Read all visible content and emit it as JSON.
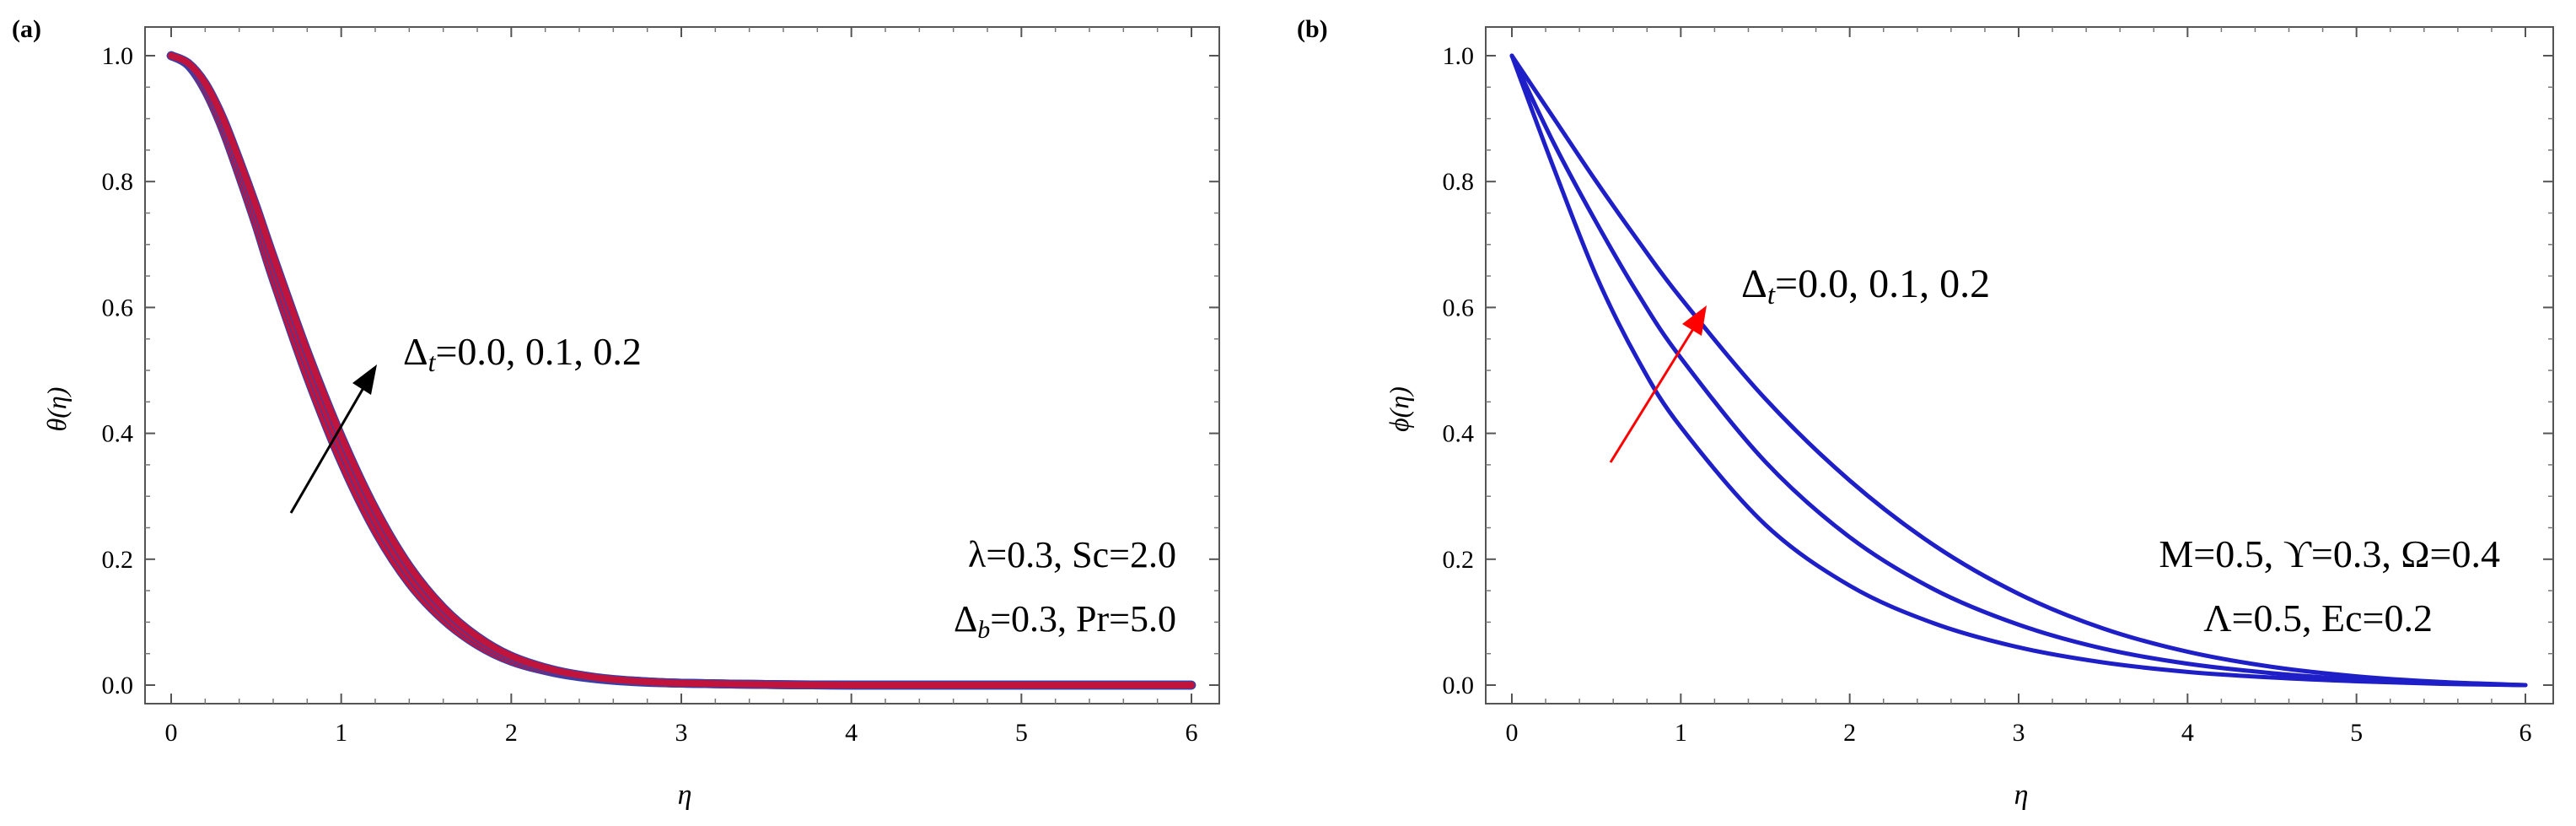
{
  "colors": {
    "axis": "#555555",
    "curve_a": "#c0143c",
    "curve_a_edge": "#3a3fa8",
    "curve_b": "#1f1fc8",
    "arrow_a": "#000000",
    "arrow_b": "#ff0000"
  },
  "chart_data": [
    {
      "panel_label": "(a)",
      "type": "line",
      "xlabel": "η",
      "ylabel": "θ(η)",
      "xlim": [
        0,
        6
      ],
      "ylim": [
        0,
        1
      ],
      "xticks": [
        "0",
        "1",
        "2",
        "3",
        "4",
        "5",
        "6"
      ],
      "yticks": [
        "0.0",
        "0.2",
        "0.4",
        "0.6",
        "0.8",
        "1.0"
      ],
      "grid": false,
      "x": [
        0,
        0.1,
        0.2,
        0.3,
        0.4,
        0.5,
        0.6,
        0.8,
        1.0,
        1.2,
        1.4,
        1.6,
        1.8,
        2.0,
        2.25,
        2.5,
        2.75,
        3.0,
        3.5,
        4.0,
        5.0,
        6.0
      ],
      "series": [
        {
          "name": "Δt=0.0",
          "values": [
            1.0,
            0.985,
            0.945,
            0.885,
            0.81,
            0.73,
            0.645,
            0.49,
            0.355,
            0.245,
            0.162,
            0.104,
            0.064,
            0.038,
            0.02,
            0.01,
            0.005,
            0.003,
            0.001,
            0.0,
            0.0,
            0.0
          ]
        },
        {
          "name": "Δt=0.1",
          "values": [
            1.0,
            0.987,
            0.951,
            0.894,
            0.822,
            0.745,
            0.663,
            0.51,
            0.375,
            0.262,
            0.175,
            0.113,
            0.07,
            0.042,
            0.022,
            0.011,
            0.006,
            0.003,
            0.001,
            0.0,
            0.0,
            0.0
          ]
        },
        {
          "name": "Δt=0.2",
          "values": [
            1.0,
            0.988,
            0.956,
            0.903,
            0.834,
            0.76,
            0.681,
            0.53,
            0.395,
            0.28,
            0.189,
            0.123,
            0.077,
            0.046,
            0.024,
            0.012,
            0.006,
            0.003,
            0.001,
            0.0,
            0.0,
            0.0
          ]
        }
      ],
      "annotations": {
        "arrow_label": {
          "sym": "Δ",
          "sub": "t",
          "rest": "=0.0, 0.1, 0.2"
        },
        "params_line1": "λ=0.3, Sc=2.0",
        "params_line2": {
          "sym": "Δ",
          "sub": "b",
          "rest": "=0.3, Pr=5.0"
        }
      }
    },
    {
      "panel_label": "(b)",
      "type": "line",
      "xlabel": "η",
      "ylabel": "ϕ(η)",
      "xlim": [
        0,
        6
      ],
      "ylim": [
        0,
        1
      ],
      "xticks": [
        "0",
        "1",
        "2",
        "3",
        "4",
        "5",
        "6"
      ],
      "yticks": [
        "0.0",
        "0.2",
        "0.4",
        "0.6",
        "0.8",
        "1.0"
      ],
      "grid": false,
      "x": [
        0,
        0.25,
        0.5,
        0.75,
        1.0,
        1.5,
        2.0,
        2.5,
        3.0,
        3.5,
        4.0,
        4.5,
        5.0,
        5.5,
        6.0
      ],
      "series": [
        {
          "name": "Δt=0.0",
          "values": [
            1.0,
            0.82,
            0.65,
            0.515,
            0.41,
            0.255,
            0.158,
            0.098,
            0.06,
            0.036,
            0.021,
            0.012,
            0.006,
            0.002,
            0.0
          ]
        },
        {
          "name": "Δt=0.1",
          "values": [
            1.0,
            0.86,
            0.735,
            0.62,
            0.52,
            0.355,
            0.235,
            0.152,
            0.096,
            0.058,
            0.034,
            0.019,
            0.009,
            0.003,
            0.0
          ]
        },
        {
          "name": "Δt=0.2",
          "values": [
            1.0,
            0.9,
            0.8,
            0.705,
            0.615,
            0.455,
            0.325,
            0.222,
            0.145,
            0.09,
            0.053,
            0.029,
            0.014,
            0.005,
            0.0
          ]
        }
      ],
      "annotations": {
        "arrow_label": {
          "sym": "Δ",
          "sub": "t",
          "rest": "=0.0, 0.1, 0.2"
        },
        "params_line1": "M=0.5, ϒ=0.3, Ω=0.4",
        "params_line2": "Λ=0.5, Ec=0.2"
      }
    }
  ]
}
